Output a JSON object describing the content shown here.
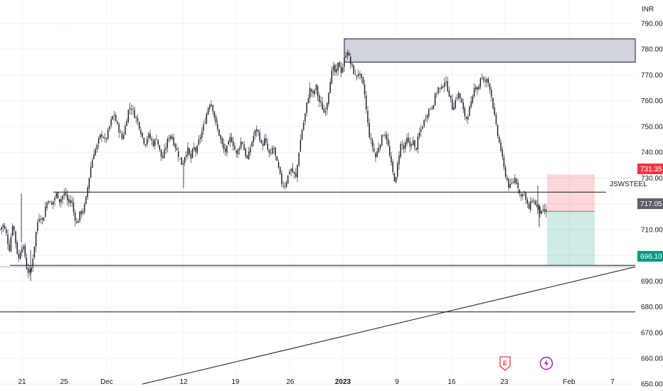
{
  "currency": "INR",
  "symbol": "JSWSTEEL",
  "badges": {
    "target_high": "731.35",
    "current": "717.05",
    "target_low": "696.10"
  },
  "events": [
    {
      "name": "earnings",
      "letter": "E",
      "color": "#f23645"
    },
    {
      "name": "dividend",
      "letter": "⚡",
      "color": "#9c27b0"
    }
  ],
  "chart_data": {
    "type": "candlestick",
    "ylim": [
      648,
      793
    ],
    "y_ticks": [
      "650.00",
      "660.00",
      "670.00",
      "680.00",
      "690.00",
      "700.00",
      "710.00",
      "720.00",
      "730.00",
      "740.00",
      "750.00",
      "760.00",
      "770.00",
      "780.00",
      "790.00"
    ],
    "x_ticks": [
      {
        "label": "21",
        "bold": false
      },
      {
        "label": "25",
        "bold": false
      },
      {
        "label": "Dec",
        "bold": false
      },
      {
        "label": "12",
        "bold": false
      },
      {
        "label": "19",
        "bold": false
      },
      {
        "label": "26",
        "bold": false
      },
      {
        "label": "2023",
        "bold": true
      },
      {
        "label": "9",
        "bold": false
      },
      {
        "label": "16",
        "bold": false
      },
      {
        "label": "23",
        "bold": false
      },
      {
        "label": "Feb",
        "bold": false
      },
      {
        "label": "7",
        "bold": false
      }
    ],
    "close_path": [
      [
        0,
        710
      ],
      [
        4,
        712
      ],
      [
        9,
        708
      ],
      [
        13,
        702
      ],
      [
        18,
        713
      ],
      [
        22,
        705
      ],
      [
        26,
        698
      ],
      [
        30,
        704
      ],
      [
        34,
        702
      ],
      [
        38,
        694
      ],
      [
        43,
        693
      ],
      [
        48,
        703
      ],
      [
        52,
        712
      ],
      [
        56,
        716
      ],
      [
        60,
        713
      ],
      [
        64,
        719
      ],
      [
        68,
        722
      ],
      [
        72,
        719
      ],
      [
        76,
        722
      ],
      [
        80,
        724
      ],
      [
        84,
        721
      ],
      [
        88,
        723
      ],
      [
        92,
        724
      ],
      [
        96,
        720
      ],
      [
        100,
        722
      ],
      [
        104,
        716
      ],
      [
        108,
        712
      ],
      [
        112,
        716
      ],
      [
        116,
        717
      ],
      [
        120,
        720
      ],
      [
        124,
        728
      ],
      [
        128,
        735
      ],
      [
        132,
        740
      ],
      [
        136,
        742
      ],
      [
        140,
        746
      ],
      [
        144,
        747
      ],
      [
        148,
        744
      ],
      [
        152,
        748
      ],
      [
        156,
        752
      ],
      [
        160,
        755
      ],
      [
        164,
        751
      ],
      [
        168,
        748
      ],
      [
        172,
        745
      ],
      [
        176,
        750
      ],
      [
        180,
        756
      ],
      [
        184,
        758
      ],
      [
        188,
        755
      ],
      [
        192,
        753
      ],
      [
        196,
        750
      ],
      [
        200,
        746
      ],
      [
        204,
        743
      ],
      [
        208,
        747
      ],
      [
        212,
        745
      ],
      [
        216,
        743
      ],
      [
        220,
        746
      ],
      [
        224,
        741
      ],
      [
        228,
        737
      ],
      [
        232,
        741
      ],
      [
        236,
        745
      ],
      [
        240,
        747
      ],
      [
        244,
        744
      ],
      [
        248,
        741
      ],
      [
        252,
        738
      ],
      [
        256,
        735
      ],
      [
        260,
        739
      ],
      [
        264,
        741
      ],
      [
        268,
        737
      ],
      [
        272,
        742
      ],
      [
        276,
        740
      ],
      [
        280,
        745
      ],
      [
        284,
        748
      ],
      [
        288,
        752
      ],
      [
        292,
        757
      ],
      [
        296,
        760
      ],
      [
        300,
        756
      ],
      [
        304,
        750
      ],
      [
        308,
        747
      ],
      [
        312,
        743
      ],
      [
        316,
        740
      ],
      [
        320,
        742
      ],
      [
        324,
        746
      ],
      [
        328,
        743
      ],
      [
        332,
        739
      ],
      [
        336,
        742
      ],
      [
        340,
        745
      ],
      [
        344,
        740
      ],
      [
        348,
        737
      ],
      [
        352,
        742
      ],
      [
        356,
        746
      ],
      [
        360,
        749
      ],
      [
        364,
        747
      ],
      [
        368,
        742
      ],
      [
        372,
        745
      ],
      [
        376,
        741
      ],
      [
        380,
        738
      ],
      [
        384,
        743
      ],
      [
        388,
        737
      ],
      [
        392,
        733
      ],
      [
        396,
        728
      ],
      [
        400,
        727
      ],
      [
        404,
        730
      ],
      [
        408,
        734
      ],
      [
        412,
        732
      ],
      [
        416,
        730
      ],
      [
        420,
        740
      ],
      [
        424,
        748
      ],
      [
        428,
        753
      ],
      [
        432,
        760
      ],
      [
        436,
        765
      ],
      [
        440,
        762
      ],
      [
        444,
        766
      ],
      [
        448,
        760
      ],
      [
        452,
        758
      ],
      [
        456,
        755
      ],
      [
        460,
        760
      ],
      [
        464,
        768
      ],
      [
        468,
        773
      ],
      [
        472,
        770
      ],
      [
        476,
        775
      ],
      [
        480,
        771
      ],
      [
        484,
        776
      ],
      [
        488,
        780
      ],
      [
        492,
        775
      ],
      [
        496,
        772
      ],
      [
        500,
        769
      ],
      [
        504,
        771
      ],
      [
        508,
        768
      ],
      [
        512,
        764
      ],
      [
        516,
        753
      ],
      [
        520,
        745
      ],
      [
        524,
        742
      ],
      [
        528,
        738
      ],
      [
        532,
        742
      ],
      [
        536,
        745
      ],
      [
        540,
        748
      ],
      [
        544,
        745
      ],
      [
        548,
        738
      ],
      [
        552,
        732
      ],
      [
        556,
        728
      ],
      [
        560,
        738
      ],
      [
        564,
        744
      ],
      [
        568,
        741
      ],
      [
        572,
        745
      ],
      [
        576,
        742
      ],
      [
        580,
        745
      ],
      [
        584,
        740
      ],
      [
        588,
        746
      ],
      [
        592,
        749
      ],
      [
        596,
        752
      ],
      [
        600,
        755
      ],
      [
        604,
        757
      ],
      [
        608,
        758
      ],
      [
        612,
        762
      ],
      [
        616,
        765
      ],
      [
        620,
        764
      ],
      [
        624,
        768
      ],
      [
        628,
        766
      ],
      [
        632,
        762
      ],
      [
        636,
        757
      ],
      [
        640,
        760
      ],
      [
        644,
        763
      ],
      [
        648,
        760
      ],
      [
        652,
        755
      ],
      [
        656,
        753
      ],
      [
        660,
        757
      ],
      [
        664,
        760
      ],
      [
        668,
        767
      ],
      [
        672,
        764
      ],
      [
        676,
        770
      ],
      [
        680,
        767
      ],
      [
        684,
        768
      ],
      [
        688,
        766
      ],
      [
        692,
        760
      ],
      [
        696,
        752
      ],
      [
        700,
        746
      ],
      [
        704,
        741
      ],
      [
        708,
        734
      ],
      [
        712,
        730
      ],
      [
        716,
        726
      ],
      [
        720,
        728
      ],
      [
        724,
        730
      ],
      [
        728,
        727
      ],
      [
        732,
        722
      ],
      [
        736,
        726
      ],
      [
        740,
        720
      ],
      [
        744,
        718
      ],
      [
        748,
        722
      ],
      [
        752,
        720
      ],
      [
        756,
        719
      ],
      [
        760,
        716
      ],
      [
        764,
        717
      ],
      [
        768,
        717
      ]
    ],
    "resistance_zone": [
      775,
      784
    ],
    "support_lines": [
      724.5,
      696.1,
      678
    ],
    "gray_line": 695.5,
    "trendline_from": 650,
    "trendline_to": 695.5,
    "position": {
      "entry": 717.05,
      "stop": 731.35,
      "target": 696.1
    },
    "gridlines": true
  }
}
